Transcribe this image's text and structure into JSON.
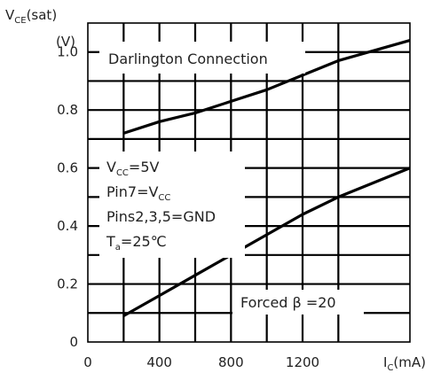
{
  "chart_data": {
    "type": "line",
    "title": "",
    "ylabel": {
      "main": "V",
      "sub": "CE",
      "rest": "(sat)",
      "unit": "(V)"
    },
    "xlabel": {
      "main": "I",
      "sub": "C",
      "rest": "(mA)"
    },
    "xlim": [
      0,
      1800
    ],
    "ylim": [
      0,
      1.1
    ],
    "xticks": [
      0,
      200,
      400,
      600,
      800,
      1000,
      1200,
      1400,
      1800
    ],
    "yticks": [
      0,
      0.1,
      0.2,
      0.3,
      0.4,
      0.5,
      0.6,
      0.7,
      0.8,
      0.9,
      1.0
    ],
    "xtick_labels": [
      {
        "value": 0,
        "label": "0"
      },
      {
        "value": 400,
        "label": "400"
      },
      {
        "value": 800,
        "label": "800"
      },
      {
        "value": 1200,
        "label": "1200"
      }
    ],
    "ytick_labels": [
      {
        "value": 0,
        "label": "0"
      },
      {
        "value": 0.2,
        "label": "0.2"
      },
      {
        "value": 0.4,
        "label": "0.4"
      },
      {
        "value": 0.6,
        "label": "0.6"
      },
      {
        "value": 0.8,
        "label": "0.8"
      },
      {
        "value": 1.0,
        "label": "1.0"
      }
    ],
    "grid": true,
    "series": [
      {
        "values_x": [
          200,
          400,
          600,
          800,
          1000,
          1200,
          1400,
          1800
        ],
        "values_y": [
          0.72,
          0.76,
          0.79,
          0.83,
          0.87,
          0.92,
          0.97,
          1.04
        ]
      },
      {
        "values_x": [
          200,
          400,
          600,
          800,
          1000,
          1200,
          1400,
          1800
        ],
        "values_y": [
          0.09,
          0.16,
          0.23,
          0.3,
          0.37,
          0.44,
          0.5,
          0.6
        ]
      }
    ],
    "annotations": {
      "connection": "Darlington Connection",
      "conditions": [
        {
          "main": "V",
          "sub": "CC",
          "rest": "=5V"
        },
        {
          "main": "Pin7=V",
          "sub": "CC",
          "rest": ""
        },
        {
          "main": "Pins2,3,5=GND",
          "sub": "",
          "rest": ""
        },
        {
          "main": "T",
          "sub": "a",
          "rest": "=25℃"
        }
      ],
      "forced": "Forced β =20"
    }
  }
}
